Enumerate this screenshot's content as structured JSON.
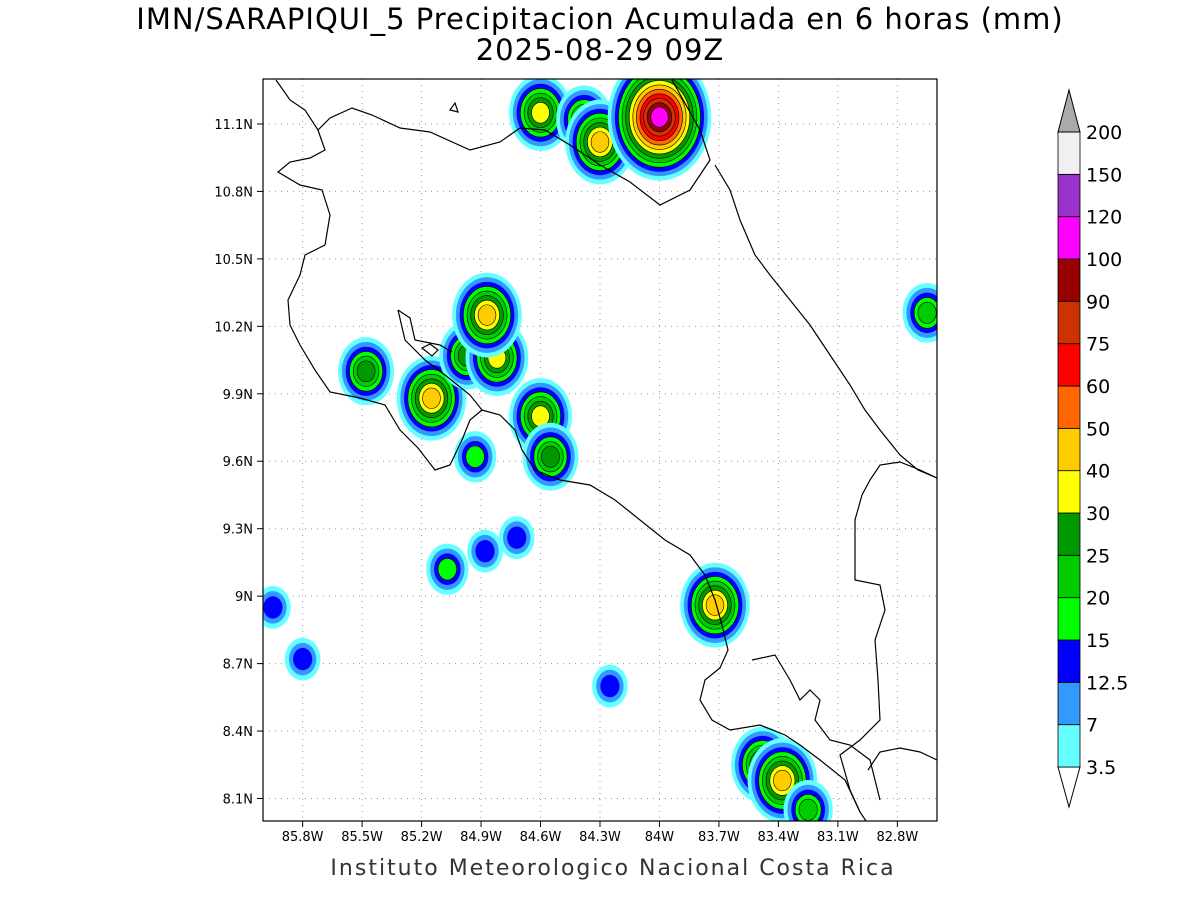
{
  "title": {
    "line1": "IMN/SARAPIQUI_5 Precipitacion Acumulada en 6 horas (mm)",
    "line2": "2025-08-29 09Z"
  },
  "footer": "Instituto Meteorologico Nacional Costa Rica",
  "map": {
    "lon_range": [
      -86.0,
      -82.6
    ],
    "lat_range": [
      8.0,
      11.3
    ],
    "lon_ticks": [
      {
        "value": -85.8,
        "label": "85.8W"
      },
      {
        "value": -85.5,
        "label": "85.5W"
      },
      {
        "value": -85.2,
        "label": "85.2W"
      },
      {
        "value": -84.9,
        "label": "84.9W"
      },
      {
        "value": -84.6,
        "label": "84.6W"
      },
      {
        "value": -84.3,
        "label": "84.3W"
      },
      {
        "value": -84.0,
        "label": "84W"
      },
      {
        "value": -83.7,
        "label": "83.7W"
      },
      {
        "value": -83.4,
        "label": "83.4W"
      },
      {
        "value": -83.1,
        "label": "83.1W"
      },
      {
        "value": -82.8,
        "label": "82.8W"
      }
    ],
    "lat_ticks": [
      {
        "value": 11.1,
        "label": "11.1N"
      },
      {
        "value": 10.8,
        "label": "10.8N"
      },
      {
        "value": 10.5,
        "label": "10.5N"
      },
      {
        "value": 10.2,
        "label": "10.2N"
      },
      {
        "value": 9.9,
        "label": "9.9N"
      },
      {
        "value": 9.6,
        "label": "9.6N"
      },
      {
        "value": 9.3,
        "label": "9.3N"
      },
      {
        "value": 9.0,
        "label": "9N"
      },
      {
        "value": 8.7,
        "label": "8.7N"
      },
      {
        "value": 8.4,
        "label": "8.4N"
      },
      {
        "value": 8.1,
        "label": "8.1N"
      }
    ]
  },
  "colorbar": {
    "levels": [
      "3.5",
      "7",
      "12.5",
      "15",
      "20",
      "25",
      "30",
      "40",
      "50",
      "60",
      "75",
      "90",
      "100",
      "120",
      "150",
      "200"
    ],
    "colors": [
      "#66ffff",
      "#3399ff",
      "#0000ff",
      "#00ff00",
      "#00cc00",
      "#009900",
      "#ffff00",
      "#ffcc00",
      "#ff6600",
      "#ff0000",
      "#cc3300",
      "#990000",
      "#ff00ff",
      "#9933cc",
      "#f0f0f0",
      "#aaaaaa"
    ]
  },
  "precip_cells": [
    {
      "lon": -84.6,
      "lat": 11.15,
      "value": 30
    },
    {
      "lon": -84.38,
      "lat": 11.12,
      "value": 25
    },
    {
      "lon": -84.3,
      "lat": 11.02,
      "value": 40
    },
    {
      "lon": -84.0,
      "lat": 11.13,
      "value": 100
    },
    {
      "lon": -85.48,
      "lat": 10.0,
      "value": 25
    },
    {
      "lon": -85.15,
      "lat": 9.88,
      "value": 40
    },
    {
      "lon": -84.97,
      "lat": 10.07,
      "value": 25
    },
    {
      "lon": -84.82,
      "lat": 10.06,
      "value": 30
    },
    {
      "lon": -84.87,
      "lat": 10.25,
      "value": 40
    },
    {
      "lon": -84.6,
      "lat": 9.8,
      "value": 30
    },
    {
      "lon": -84.55,
      "lat": 9.62,
      "value": 25
    },
    {
      "lon": -84.93,
      "lat": 9.62,
      "value": 15
    },
    {
      "lon": -84.88,
      "lat": 9.2,
      "value": 12.5
    },
    {
      "lon": -85.07,
      "lat": 9.12,
      "value": 15
    },
    {
      "lon": -84.72,
      "lat": 9.26,
      "value": 12.5
    },
    {
      "lon": -83.72,
      "lat": 8.96,
      "value": 40
    },
    {
      "lon": -83.48,
      "lat": 8.25,
      "value": 30
    },
    {
      "lon": -83.38,
      "lat": 8.18,
      "value": 40
    },
    {
      "lon": -82.65,
      "lat": 10.26,
      "value": 20
    },
    {
      "lon": -85.95,
      "lat": 8.95,
      "value": 12.5
    },
    {
      "lon": -85.8,
      "lat": 8.72,
      "value": 12.5
    },
    {
      "lon": -84.25,
      "lat": 8.6,
      "value": 12.5
    },
    {
      "lon": -83.25,
      "lat": 8.05,
      "value": 20
    }
  ]
}
